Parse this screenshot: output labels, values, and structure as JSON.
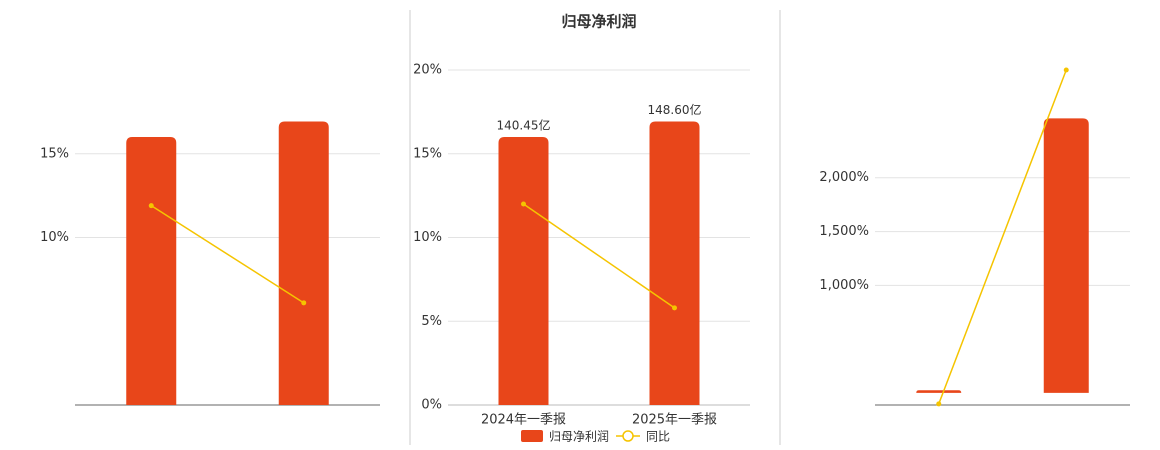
{
  "chart_data": [
    {
      "type": "bar",
      "categories": [
        null,
        null
      ],
      "series": [
        {
          "color": "#e8461a",
          "values": [
            140.45,
            148.6
          ],
          "axis": "y2"
        },
        {
          "type": "line",
          "color": "#f5c400",
          "values": [
            11.9,
            6.1
          ]
        }
      ],
      "ylim": [
        0,
        20
      ],
      "yticks": [
        {
          "value": 10,
          "label": "10%"
        },
        {
          "value": 15,
          "label": "15%"
        }
      ],
      "y2lim": [
        0,
        175.6
      ],
      "grid": true
    },
    {
      "type": "bar",
      "title": "归母净利润",
      "categories": [
        "2024年一季报",
        "2025年一季报"
      ],
      "series": [
        {
          "name": "归母净利润",
          "color": "#e8461a",
          "values": [
            140.45,
            148.6
          ],
          "value_labels": [
            "140.45亿",
            "148.60亿"
          ],
          "axis": "y2"
        },
        {
          "name": "同比",
          "type": "line",
          "color": "#f5c400",
          "values": [
            12.0,
            5.8
          ]
        }
      ],
      "ylim": [
        0,
        20
      ],
      "yticks": [
        {
          "value": 0,
          "label": "0%"
        },
        {
          "value": 5,
          "label": "5%"
        },
        {
          "value": 10,
          "label": "10%"
        },
        {
          "value": 15,
          "label": "15%"
        },
        {
          "value": 20,
          "label": "20%"
        }
      ],
      "y2lim": [
        0,
        175.6
      ],
      "grid": true,
      "legend": "bottom"
    },
    {
      "type": "bar",
      "categories": [
        null,
        null
      ],
      "series": [
        {
          "color": "#e8461a",
          "values": [
            0.1,
            10.2
          ],
          "axis": "y2"
        },
        {
          "type": "line",
          "color": "#f5c400",
          "values": [
            -100,
            3000
          ]
        }
      ],
      "ylim": [
        -110,
        3000
      ],
      "yticks": [
        {
          "value": 1000,
          "label": "1,000%"
        },
        {
          "value": 1500,
          "label": "1,500%"
        },
        {
          "value": 2000,
          "label": "2,000%"
        }
      ],
      "y2lim": [
        -0.45,
        12
      ],
      "grid": true
    }
  ]
}
